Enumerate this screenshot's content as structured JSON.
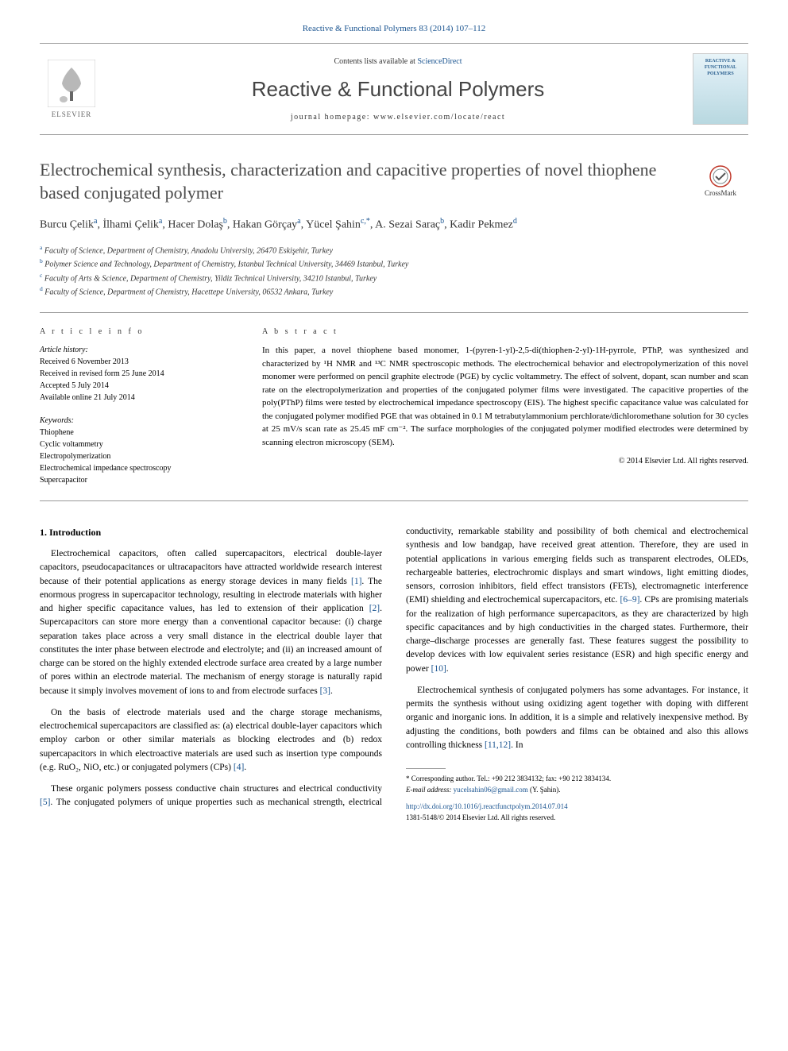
{
  "journal_ref": "Reactive & Functional Polymers 83 (2014) 107–112",
  "header": {
    "contents_prefix": "Contents lists available at ",
    "contents_link": "ScienceDirect",
    "journal_name": "Reactive & Functional Polymers",
    "homepage_prefix": "journal homepage: ",
    "homepage_url": "www.elsevier.com/locate/react",
    "elsevier_label": "ELSEVIER",
    "cover_line1": "REACTIVE &",
    "cover_line2": "FUNCTIONAL",
    "cover_line3": "POLYMERS"
  },
  "crossmark_label": "CrossMark",
  "title": "Electrochemical synthesis, characterization and capacitive properties of novel thiophene based conjugated polymer",
  "authors_html": "Burcu Çelik",
  "authors": [
    {
      "name": "Burcu Çelik",
      "sup": "a"
    },
    {
      "name": "İlhami Çelik",
      "sup": "a"
    },
    {
      "name": "Hacer Dolaş",
      "sup": "b"
    },
    {
      "name": "Hakan Görçay",
      "sup": "a"
    },
    {
      "name": "Yücel Şahin",
      "sup": "c,*"
    },
    {
      "name": "A. Sezai Saraç",
      "sup": "b"
    },
    {
      "name": "Kadir Pekmez",
      "sup": "d"
    }
  ],
  "affiliations": [
    {
      "sup": "a",
      "text": "Faculty of Science, Department of Chemistry, Anadolu University, 26470 Eskişehir, Turkey"
    },
    {
      "sup": "b",
      "text": "Polymer Science and Technology, Department of Chemistry, Istanbul Technical University, 34469 Istanbul, Turkey"
    },
    {
      "sup": "c",
      "text": "Faculty of Arts & Science, Department of Chemistry, Yildiz Technical University, 34210 Istanbul, Turkey"
    },
    {
      "sup": "d",
      "text": "Faculty of Science, Department of Chemistry, Hacettepe University, 06532 Ankara, Turkey"
    }
  ],
  "info": {
    "header": "A R T I C L E   I N F O",
    "history_label": "Article history:",
    "history": [
      "Received 6 November 2013",
      "Received in revised form 25 June 2014",
      "Accepted 5 July 2014",
      "Available online 21 July 2014"
    ],
    "keywords_label": "Keywords:",
    "keywords": [
      "Thiophene",
      "Cyclic voltammetry",
      "Electropolymerization",
      "Electrochemical impedance spectroscopy",
      "Supercapacitor"
    ]
  },
  "abstract": {
    "header": "A B S T R A C T",
    "text": "In this paper, a novel thiophene based monomer, 1-(pyren-1-yl)-2,5-di(thiophen-2-yl)-1H-pyrrole, PThP, was synthesized and characterized by ¹H NMR and ¹³C NMR spectroscopic methods. The electrochemical behavior and electropolymerization of this novel monomer were performed on pencil graphite electrode (PGE) by cyclic voltammetry. The effect of solvent, dopant, scan number and scan rate on the electropolymerization and properties of the conjugated polymer films were investigated. The capacitive properties of the poly(PThP) films were tested by electrochemical impedance spectroscopy (EIS). The highest specific capacitance value was calculated for the conjugated polymer modified PGE that was obtained in 0.1 M tetrabutylammonium perchlorate/dichloromethane solution for 30 cycles at 25 mV/s scan rate as 25.45 mF cm⁻². The surface morphologies of the conjugated polymer modified electrodes were determined by scanning electron microscopy (SEM).",
    "copyright": "© 2014 Elsevier Ltd. All rights reserved."
  },
  "body": {
    "heading": "1. Introduction",
    "paragraphs": [
      "Electrochemical capacitors, often called supercapacitors, electrical double-layer capacitors, pseudocapacitances or ultracapacitors have attracted worldwide research interest because of their potential applications as energy storage devices in many fields [1]. The enormous progress in supercapacitor technology, resulting in electrode materials with higher and higher specific capacitance values, has led to extension of their application [2]. Supercapacitors can store more energy than a conventional capacitor because: (i) charge separation takes place across a very small distance in the electrical double layer that constitutes the inter phase between electrode and electrolyte; and (ii) an increased amount of charge can be stored on the highly extended electrode surface area created by a large number of pores within an electrode material. The mechanism of energy storage is naturally rapid because it simply involves movement of ions to and from electrode surfaces [3].",
      "On the basis of electrode materials used and the charge storage mechanisms, electrochemical supercapacitors are classified as: (a) electrical double-layer capacitors which employ carbon or other similar materials as blocking electrodes and (b) redox supercapacitors in which electroactive materials are used such as insertion type compounds (e.g. RuO₂, NiO, etc.) or conjugated polymers (CPs) [4].",
      "These organic polymers possess conductive chain structures and electrical conductivity [5]. The conjugated polymers of unique properties such as mechanical strength, electrical conductivity, remarkable stability and possibility of both chemical and electrochemical synthesis and low bandgap, have received great attention. Therefore, they are used in potential applications in various emerging fields such as transparent electrodes, OLEDs, rechargeable batteries, electrochromic displays and smart windows, light emitting diodes, sensors, corrosion inhibitors, field effect transistors (FETs), electromagnetic interference (EMI) shielding and electrochemical supercapacitors, etc. [6–9]. CPs are promising materials for the realization of high performance supercapacitors, as they are characterized by high specific capacitances and by high conductivities in the charged states. Furthermore, their charge–discharge processes are generally fast. These features suggest the possibility to develop devices with low equivalent series resistance (ESR) and high specific energy and power [10].",
      "Electrochemical synthesis of conjugated polymers has some advantages. For instance, it permits the synthesis without using oxidizing agent together with doping with different organic and inorganic ions. In addition, it is a simple and relatively inexpensive method. By adjusting the conditions, both powders and films can be obtained and also this allows controlling thickness [11,12]. In"
    ],
    "refs": [
      "[1]",
      "[2]",
      "[3]",
      "[4]",
      "[5]",
      "[6–9]",
      "[10]",
      "[11,12]"
    ]
  },
  "footer": {
    "corresponding": "* Corresponding author. Tel.: +90 212 3834132; fax: +90 212 3834134.",
    "email_label": "E-mail address: ",
    "email": "yucelsahin06@gmail.com",
    "email_author": " (Y. Şahin).",
    "doi": "http://dx.doi.org/10.1016/j.reactfunctpolym.2014.07.014",
    "issn_line": "1381-5148/© 2014 Elsevier Ltd. All rights reserved."
  },
  "colors": {
    "link": "#1a5490",
    "text": "#000000",
    "heading_gray": "#4a4a4a",
    "border": "#999999",
    "elsevier_orange": "#e67e22"
  }
}
